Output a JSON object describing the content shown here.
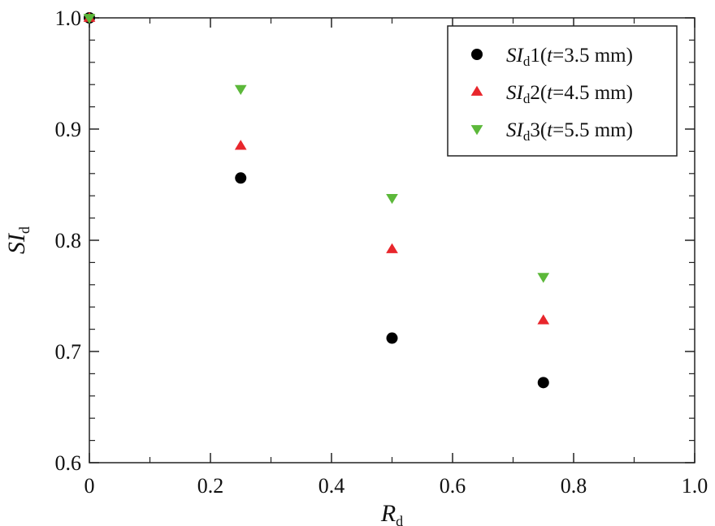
{
  "chart_data": {
    "type": "scatter",
    "xlabel": {
      "main": "R",
      "sub": "d"
    },
    "ylabel": {
      "main": "SI",
      "sub": "d"
    },
    "xlim": [
      0,
      1.0
    ],
    "ylim": [
      0.6,
      1.0
    ],
    "xticks": [
      "0",
      "0.2",
      "0.4",
      "0.6",
      "0.8",
      "1.0"
    ],
    "yticks": [
      "0.6",
      "0.7",
      "0.8",
      "0.9",
      "1.0"
    ],
    "grid": false,
    "legend_position": "top-right",
    "x": [
      0,
      0.25,
      0.5,
      0.75
    ],
    "series": [
      {
        "legend": {
          "main": "SI",
          "sub": "d",
          "rest_a": "1(",
          "t": "t",
          "rest_b": "=3.5 mm)"
        },
        "marker": "circle",
        "color": "#000000",
        "values": [
          1.0,
          0.856,
          0.712,
          0.672
        ]
      },
      {
        "legend": {
          "main": "SI",
          "sub": "d",
          "rest_a": "2(",
          "t": "t",
          "rest_b": "=4.5 mm)"
        },
        "marker": "triangle-up",
        "color": "#e8262c",
        "values": [
          1.0,
          0.885,
          0.792,
          0.728
        ]
      },
      {
        "legend": {
          "main": "SI",
          "sub": "d",
          "rest_a": "3(",
          "t": "t",
          "rest_b": "=5.5 mm)"
        },
        "marker": "triangle-down",
        "color": "#5cb83a",
        "values": [
          1.0,
          0.936,
          0.838,
          0.767
        ]
      }
    ]
  }
}
